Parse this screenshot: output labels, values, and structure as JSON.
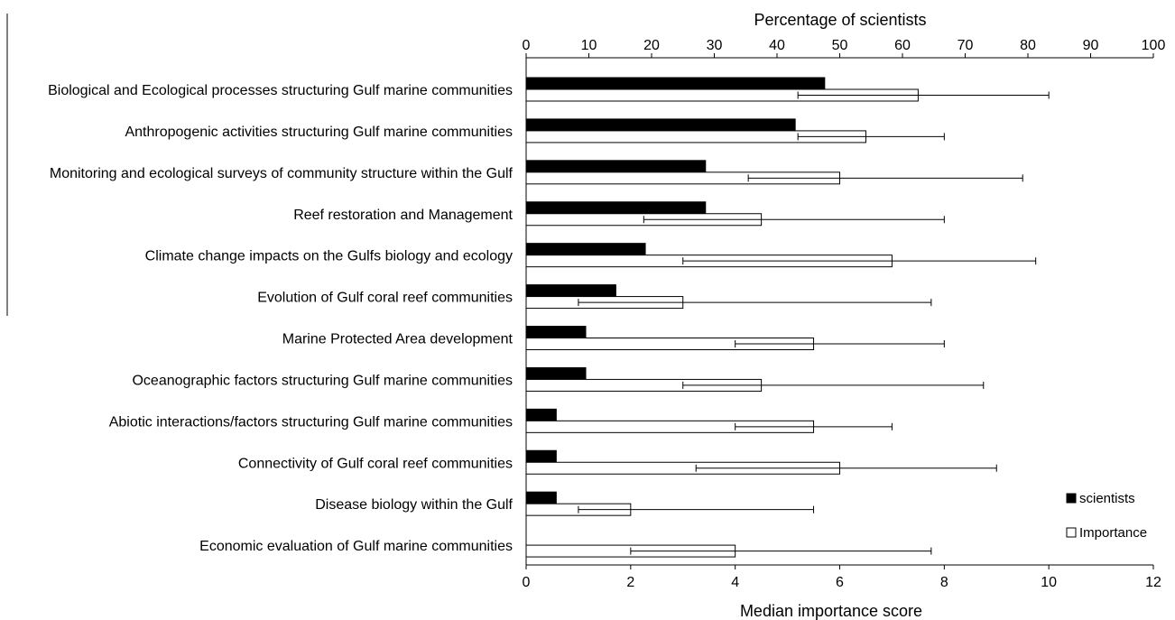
{
  "chart_data": {
    "type": "bar",
    "orientation": "horizontal",
    "categories": [
      "Biological and Ecological processes structuring Gulf marine communities",
      "Anthropogenic activities structuring Gulf marine communities",
      "Monitoring and ecological surveys of community structure within the Gulf",
      "Reef restoration and Management",
      "Climate change impacts on the Gulfs biology and ecology",
      "Evolution of Gulf coral reef communities",
      "Marine Protected Area development",
      "Oceanographic factors structuring Gulf marine communities",
      "Abiotic interactions/factors structuring Gulf marine communities",
      "Connectivity of Gulf coral reef communities",
      "Disease biology within the Gulf",
      "Economic evaluation of Gulf marine communities"
    ],
    "series": [
      {
        "name": "scientists",
        "axis": "top",
        "color": "#000000",
        "values": [
          47.6,
          42.9,
          28.6,
          28.6,
          19.0,
          14.3,
          9.5,
          9.5,
          4.8,
          4.8,
          4.8,
          0
        ]
      },
      {
        "name": "Importance",
        "axis": "bottom",
        "color": "#ffffff",
        "values": [
          7.5,
          6.5,
          6.0,
          4.5,
          7.0,
          3.0,
          5.5,
          4.5,
          5.5,
          6.0,
          2.0,
          4.0
        ],
        "error_low": [
          5.2,
          5.2,
          4.25,
          2.25,
          3.0,
          1.0,
          4.0,
          3.0,
          4.0,
          3.25,
          1.0,
          2.0
        ],
        "error_high": [
          10.0,
          8.0,
          9.5,
          8.0,
          9.75,
          7.75,
          8.0,
          8.75,
          7.0,
          9.0,
          5.5,
          7.75
        ]
      }
    ],
    "top_axis": {
      "label": "Percentage of scientists",
      "min": 0,
      "max": 100,
      "ticks": [
        0,
        10,
        20,
        30,
        40,
        50,
        60,
        70,
        80,
        90,
        100
      ]
    },
    "bottom_axis": {
      "label": "Median  importance score",
      "min": 0,
      "max": 12,
      "ticks": [
        0,
        2,
        4,
        6,
        8,
        10,
        12
      ]
    },
    "legend": {
      "placement": "bottom-right",
      "items": [
        "scientists",
        "Importance"
      ]
    },
    "grid": false
  }
}
